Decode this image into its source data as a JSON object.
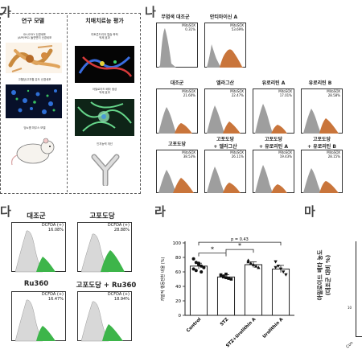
{
  "panel_letters": {
    "ga": "가",
    "na": "나",
    "da": "다",
    "ra": "라",
    "ma": "마"
  },
  "study_design": {
    "col1_header": "연구 모델",
    "col2_header": "치매치료능 평가",
    "cell_model_1": "SH-SY5Y 신경세포\n(APP/PS1 돌연변이 신경세포",
    "cell_model_2": "고혈당/고지혈 유도 신경세포",
    "animal_model": "당뇨병 마우스 모델",
    "eval_1": "미토콘드리아 칼슘 축적\n억제 효과",
    "eval_2": "아밀로이드 베타 생성\n억제 효과",
    "eval_3": "인지능력 개선"
  },
  "mitosox": {
    "marker": "MitoSOX",
    "row1": [
      {
        "label": "무염색 대조군",
        "value": "0.31%"
      },
      {
        "label": "안티마이신 A",
        "value": "53.69%"
      }
    ],
    "row2": [
      {
        "label": "대조군",
        "value": "21.60%"
      },
      {
        "label": "엘라그산",
        "value": "22.47%"
      },
      {
        "label": "유로리틴 A",
        "value": "17.01%"
      },
      {
        "label": "유로리틴 B",
        "value": "28.58%"
      }
    ],
    "row3": [
      {
        "label": "고포도당",
        "value": "38.53%"
      },
      {
        "label": "고포도당\n+ 엘라그산",
        "value": "26.11%"
      },
      {
        "label": "고포도당\n+ 유로리틴 A",
        "value": "19.43%"
      },
      {
        "label": "고포도당\n+ 유로리틴 B",
        "value": "28.15%"
      }
    ]
  },
  "dcfda": {
    "marker": "DCFDA (+)",
    "panels": [
      {
        "label": "대조군",
        "value": "16.08%"
      },
      {
        "label": "고포도당",
        "value": "28.88%"
      },
      {
        "label": "Ru360",
        "value": "16.47%"
      },
      {
        "label": "고포도당 + Ru360",
        "value": "18.94%"
      }
    ]
  },
  "chart_data": {
    "type": "bar",
    "title": "",
    "ylabel": "자발적 행동전환 비율 (%)",
    "categories": [
      "Control",
      "STZ",
      "STZ+Urolithin A",
      "Urolithin A"
    ],
    "values": [
      68,
      53,
      70,
      64
    ],
    "errors": [
      4,
      3,
      4,
      5
    ],
    "points": [
      [
        78,
        73,
        70,
        68,
        66,
        64,
        62,
        72,
        60
      ],
      [
        56,
        54,
        52,
        51,
        50,
        55,
        53,
        57
      ],
      [
        76,
        72,
        70,
        68,
        66,
        74
      ],
      [
        74,
        68,
        64,
        60,
        56,
        66
      ]
    ],
    "ylim": [
      0,
      100
    ],
    "yticks": [
      0,
      20,
      40,
      60,
      80,
      100
    ],
    "significance": [
      {
        "from": 0,
        "to": 1,
        "text": "*"
      },
      {
        "from": 1,
        "to": 2,
        "text": "*"
      },
      {
        "from": 0,
        "to": 3,
        "text": "p = 0.43"
      }
    ]
  },
  "panel_ma": {
    "ylabel": "아밀로이드 베타 농도\n(대조군 대비 %)",
    "ytick_visible": "10",
    "xtick_visible": "Con"
  }
}
